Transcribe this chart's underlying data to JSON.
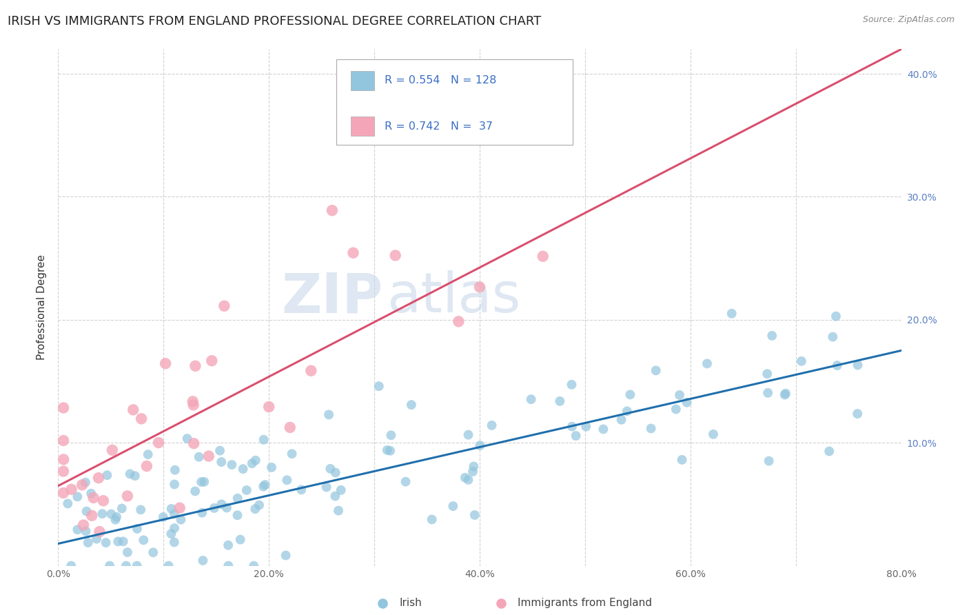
{
  "title": "IRISH VS IMMIGRANTS FROM ENGLAND PROFESSIONAL DEGREE CORRELATION CHART",
  "source_text": "Source: ZipAtlas.com",
  "ylabel": "Professional Degree",
  "xlim": [
    0.0,
    0.8
  ],
  "ylim": [
    0.0,
    0.42
  ],
  "xtick_vals": [
    0.0,
    0.1,
    0.2,
    0.3,
    0.4,
    0.5,
    0.6,
    0.7,
    0.8
  ],
  "xticklabels": [
    "0.0%",
    "",
    "20.0%",
    "",
    "40.0%",
    "",
    "60.0%",
    "",
    "80.0%"
  ],
  "ytick_vals": [
    0.0,
    0.1,
    0.2,
    0.3,
    0.4
  ],
  "yticklabels_right": [
    "",
    "10.0%",
    "20.0%",
    "30.0%",
    "40.0%"
  ],
  "irish_color": "#92c5de",
  "england_color": "#f4a6b8",
  "irish_line_color": "#1f6fad",
  "england_line_color": "#d94f6e",
  "watermark_zip": "ZIP",
  "watermark_atlas": "atlas",
  "title_fontsize": 13,
  "axis_label_fontsize": 11,
  "tick_fontsize": 10,
  "irish_line_x0": 0.0,
  "irish_line_y0": 0.018,
  "irish_line_x1": 0.8,
  "irish_line_y1": 0.175,
  "england_line_x0": 0.0,
  "england_line_y0": 0.065,
  "england_line_x1": 0.8,
  "england_line_y1": 0.42
}
